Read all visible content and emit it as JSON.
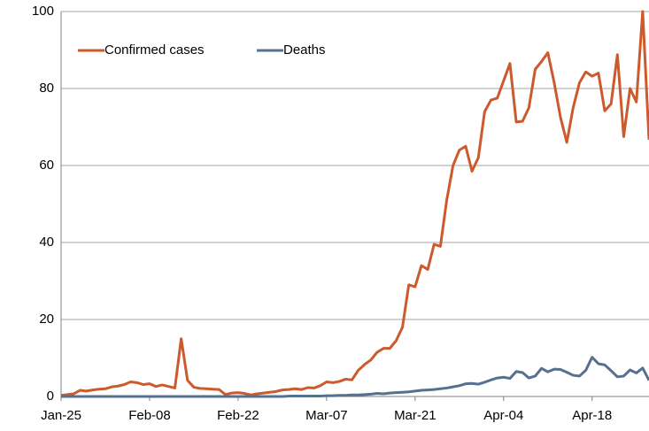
{
  "chart_data": {
    "type": "line",
    "categories": [
      "Jan-25",
      null,
      null,
      null,
      null,
      null,
      null,
      null,
      null,
      null,
      null,
      null,
      null,
      null,
      "Feb-08",
      null,
      null,
      null,
      null,
      null,
      null,
      null,
      null,
      null,
      null,
      null,
      null,
      null,
      "Feb-22",
      null,
      null,
      null,
      null,
      null,
      null,
      null,
      null,
      null,
      null,
      null,
      null,
      null,
      "Mar-07",
      null,
      null,
      null,
      null,
      null,
      null,
      null,
      null,
      null,
      null,
      null,
      null,
      null,
      "Mar-21",
      null,
      null,
      null,
      null,
      null,
      null,
      null,
      null,
      null,
      null,
      null,
      null,
      null,
      "Apr-04",
      null,
      null,
      null,
      null,
      null,
      null,
      null,
      null,
      null,
      null,
      null,
      null,
      null,
      "Apr-18",
      null,
      null,
      null,
      null,
      null,
      null,
      null,
      null,
      null
    ],
    "series": [
      {
        "name": "Confirmed cases",
        "color": "#cc5a2c",
        "values": [
          0.3,
          0.5,
          0.7,
          1.6,
          1.4,
          1.7,
          1.9,
          2.0,
          2.5,
          2.7,
          3.1,
          3.8,
          3.6,
          3.1,
          3.3,
          2.6,
          3.0,
          2.6,
          2.2,
          15,
          4.2,
          2.4,
          2.1,
          2.0,
          1.9,
          1.8,
          0.5,
          0.9,
          1.0,
          0.8,
          0.4,
          0.7,
          0.9,
          1.1,
          1.3,
          1.7,
          1.8,
          2.0,
          1.8,
          2.3,
          2.2,
          2.8,
          3.8,
          3.6,
          3.9,
          4.5,
          4.3,
          6.8,
          8.3,
          9.5,
          11.5,
          12.5,
          12.5,
          14.5,
          18,
          29,
          28.5,
          34,
          33,
          39.5,
          39,
          51,
          60,
          64,
          65,
          58.5,
          62,
          74,
          77,
          77.5,
          82,
          86.5,
          71.3,
          71.5,
          75,
          85,
          87,
          89.3,
          81.5,
          72.5,
          66,
          75,
          81.5,
          84.3,
          83.2,
          84,
          74.2,
          76,
          88.8,
          67.5,
          80,
          76.5,
          100,
          66.7
        ]
      },
      {
        "name": "Deaths",
        "color": "#56708f",
        "values": [
          0,
          0,
          0,
          0,
          0,
          0,
          0,
          0,
          0,
          0,
          0,
          0,
          0,
          0,
          0,
          0,
          0,
          0,
          0,
          0,
          0,
          0,
          0,
          0,
          0,
          0,
          0,
          0,
          0,
          0,
          0,
          0,
          0,
          0,
          0,
          0,
          0.1,
          0.1,
          0.1,
          0.1,
          0.1,
          0.1,
          0.2,
          0.2,
          0.3,
          0.3,
          0.4,
          0.4,
          0.5,
          0.6,
          0.8,
          0.7,
          0.9,
          1.0,
          1.1,
          1.2,
          1.4,
          1.6,
          1.7,
          1.8,
          2.0,
          2.2,
          2.5,
          2.8,
          3.3,
          3.4,
          3.2,
          3.7,
          4.3,
          4.8,
          5.0,
          4.7,
          6.5,
          6.2,
          4.8,
          5.3,
          7.3,
          6.4,
          7.1,
          7.0,
          6.3,
          5.5,
          5.3,
          6.8,
          10.2,
          8.5,
          8.2,
          6.7,
          5.1,
          5.3,
          6.9,
          6.1,
          7.4,
          4.2
        ]
      }
    ],
    "ylim": [
      0,
      100
    ],
    "yticks": [
      0,
      20,
      40,
      60,
      80,
      100
    ],
    "grid": true,
    "legend": "top-left"
  }
}
